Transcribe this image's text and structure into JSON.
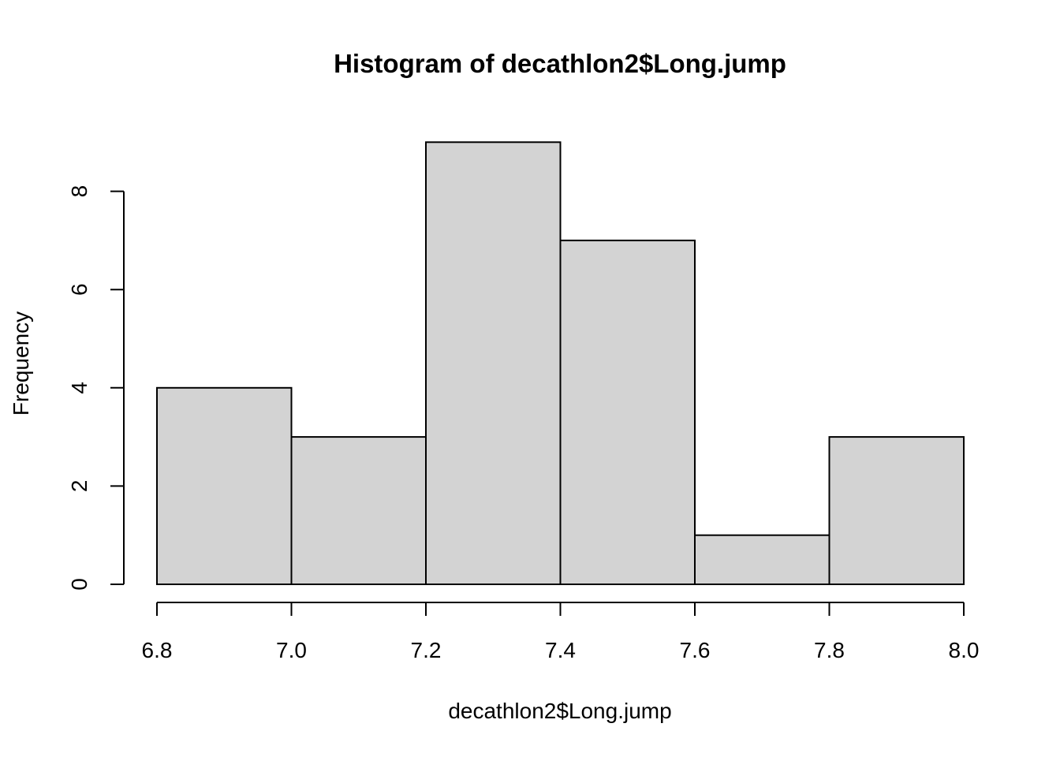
{
  "chart_data": {
    "type": "bar",
    "subtype": "histogram",
    "title": "Histogram of decathlon2$Long.jump",
    "xlabel": "decathlon2$Long.jump",
    "ylabel": "Frequency",
    "bins": [
      {
        "start": 6.8,
        "end": 7.0,
        "count": 4
      },
      {
        "start": 7.0,
        "end": 7.2,
        "count": 3
      },
      {
        "start": 7.2,
        "end": 7.4,
        "count": 9
      },
      {
        "start": 7.4,
        "end": 7.6,
        "count": 7
      },
      {
        "start": 7.6,
        "end": 7.8,
        "count": 1
      },
      {
        "start": 7.8,
        "end": 8.0,
        "count": 3
      }
    ],
    "x_ticks": [
      "6.8",
      "7.0",
      "7.2",
      "7.4",
      "7.6",
      "7.8",
      "8.0"
    ],
    "y_ticks": [
      "0",
      "2",
      "4",
      "6",
      "8"
    ],
    "xlim": [
      6.8,
      8.0
    ],
    "ylim": [
      0,
      9
    ],
    "grid": false,
    "bar_fill": "#d3d3d3",
    "bar_stroke": "#000000"
  }
}
